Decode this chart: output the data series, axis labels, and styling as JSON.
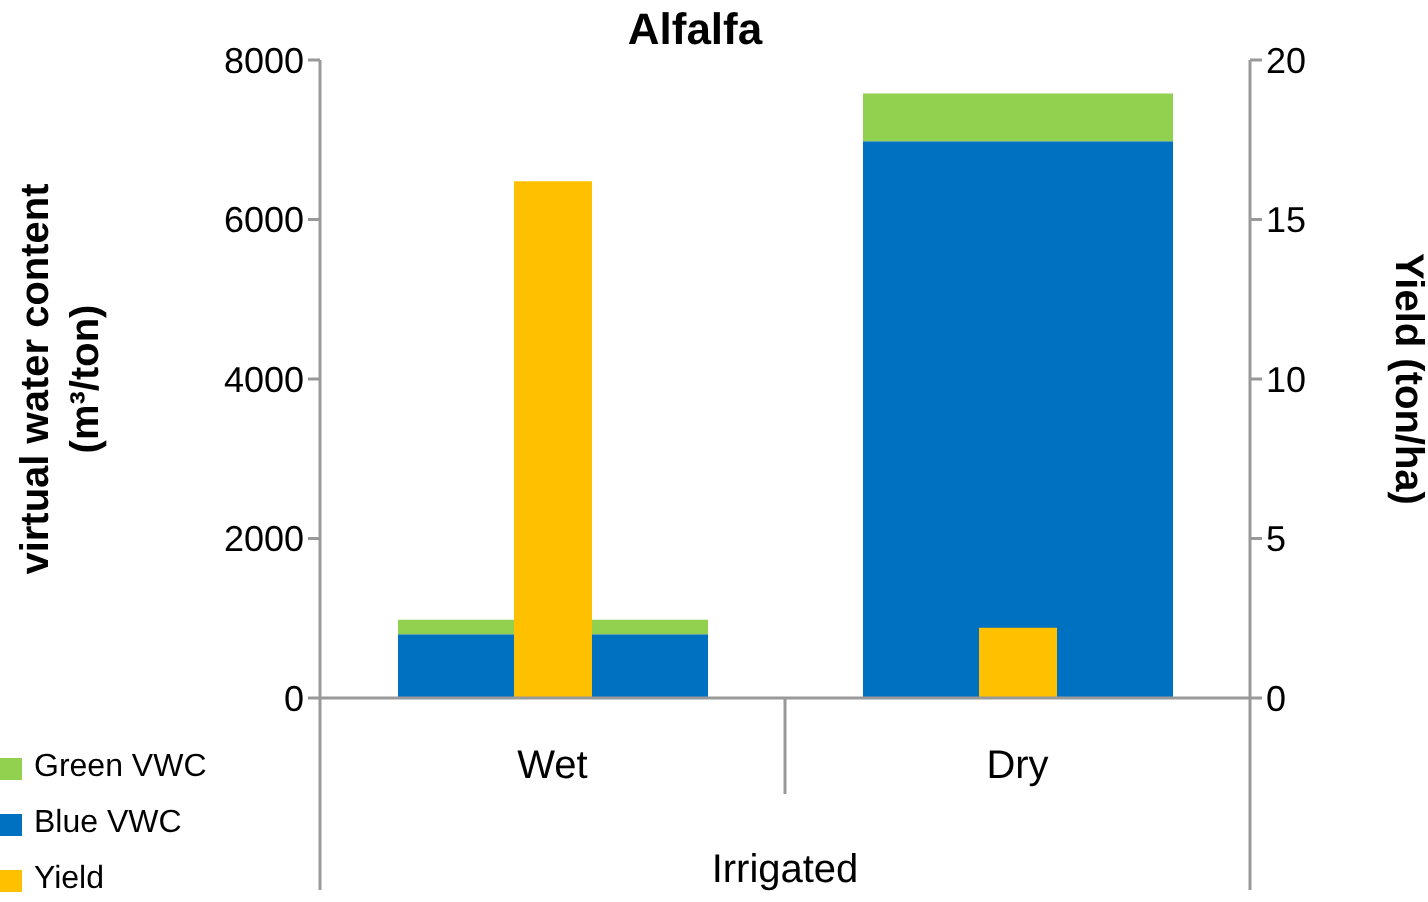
{
  "chart_data": {
    "type": "bar",
    "title": "Alfalfa",
    "xlabel": "Irrigated",
    "ylabel": "virtual water content (m³/ton)",
    "y2label": "Yield (ton/ha)",
    "categories": [
      "Wet",
      "Dry"
    ],
    "stacked": true,
    "series": [
      {
        "name": "Blue VWC",
        "color": "#0070c0",
        "values": [
          800,
          6980
        ]
      },
      {
        "name": "Green VWC",
        "color": "#92d050",
        "values": [
          180,
          600
        ]
      },
      {
        "name": "Yield",
        "color": "#ffc000",
        "values": [
          16.2,
          2.2
        ],
        "axis": "y2"
      }
    ],
    "ylim": [
      0,
      8000
    ],
    "yticks": [
      0,
      2000,
      4000,
      6000,
      8000
    ],
    "y2lim": [
      0,
      20
    ],
    "y2ticks": [
      0,
      5,
      10,
      15,
      20
    ],
    "grid": false,
    "legend": "bottom left"
  }
}
